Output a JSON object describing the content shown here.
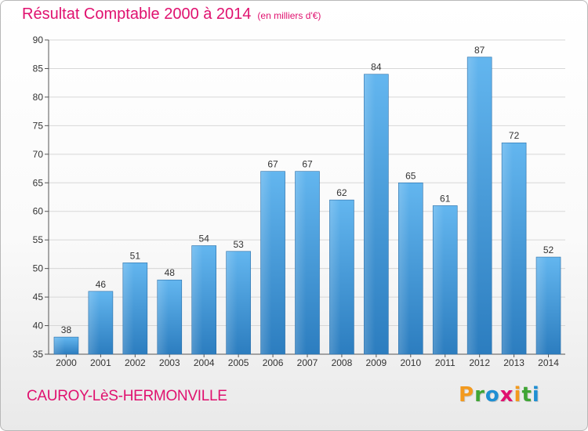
{
  "chart_data": {
    "type": "bar",
    "title": "Résultat Comptable 2000 à 2014",
    "subtitle": "(en milliers d'€)",
    "categories": [
      "2000",
      "2001",
      "2002",
      "2003",
      "2004",
      "2005",
      "2006",
      "2007",
      "2008",
      "2009",
      "2010",
      "2011",
      "2012",
      "2013",
      "2014"
    ],
    "values": [
      38,
      46,
      51,
      48,
      54,
      53,
      67,
      67,
      62,
      84,
      65,
      61,
      87,
      72,
      52
    ],
    "ylim": [
      35,
      90
    ],
    "yticks": [
      35,
      40,
      45,
      50,
      55,
      60,
      65,
      70,
      75,
      80,
      85,
      90
    ],
    "xlabel": "",
    "ylabel": "",
    "grid": "horizontal",
    "bar_color": "#4a9fdf"
  },
  "footer": {
    "commune": "CAUROY-LèS-HERMONVILLE",
    "brand": {
      "letters": [
        "P",
        "r",
        "o",
        "x",
        "i",
        "t",
        "i"
      ],
      "colors": [
        "#f39a1e",
        "#3fa535",
        "#1f8fd3",
        "#e0116f",
        "#f39a1e",
        "#3fa535",
        "#1f8fd3"
      ]
    }
  }
}
